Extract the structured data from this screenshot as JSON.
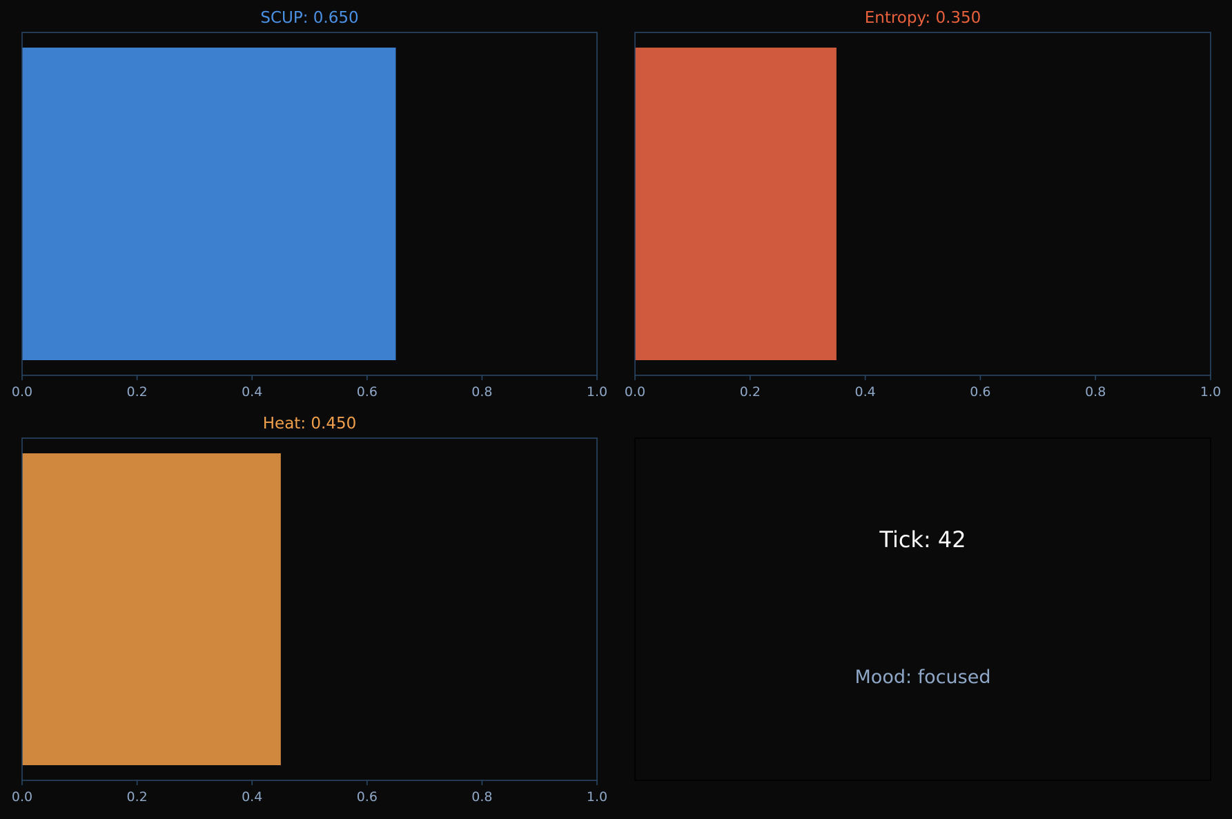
{
  "chart_data": [
    {
      "type": "bar",
      "orientation": "horizontal",
      "title": "SCUP: 0.650",
      "title_color": "#4a90e2",
      "bar_color": "#3e80d0",
      "values": [
        0.65
      ],
      "xlim": [
        0,
        1
      ],
      "xticks": [
        "0.0",
        "0.2",
        "0.4",
        "0.6",
        "0.8",
        "1.0"
      ],
      "grid": false
    },
    {
      "type": "bar",
      "orientation": "horizontal",
      "title": "Entropy: 0.350",
      "title_color": "#e8603c",
      "bar_color": "#cf5a3e",
      "values": [
        0.35
      ],
      "xlim": [
        0,
        1
      ],
      "xticks": [
        "0.0",
        "0.2",
        "0.4",
        "0.6",
        "0.8",
        "1.0"
      ],
      "grid": false
    },
    {
      "type": "bar",
      "orientation": "horizontal",
      "title": "Heat: 0.450",
      "title_color": "#f0a04b",
      "bar_color": "#cf883e",
      "values": [
        0.45
      ],
      "xlim": [
        0,
        1
      ],
      "xticks": [
        "0.0",
        "0.2",
        "0.4",
        "0.6",
        "0.8",
        "1.0"
      ],
      "grid": false
    }
  ],
  "status_panel": {
    "tick_text": "Tick: 42",
    "mood_text": "Mood: focused",
    "tick_color": "#ffffff",
    "mood_color": "#8fa8c8"
  },
  "colors": {
    "background": "#0a0a0a",
    "axis_frame": "#2a4a6a",
    "tick_label": "#8fa8c8"
  }
}
